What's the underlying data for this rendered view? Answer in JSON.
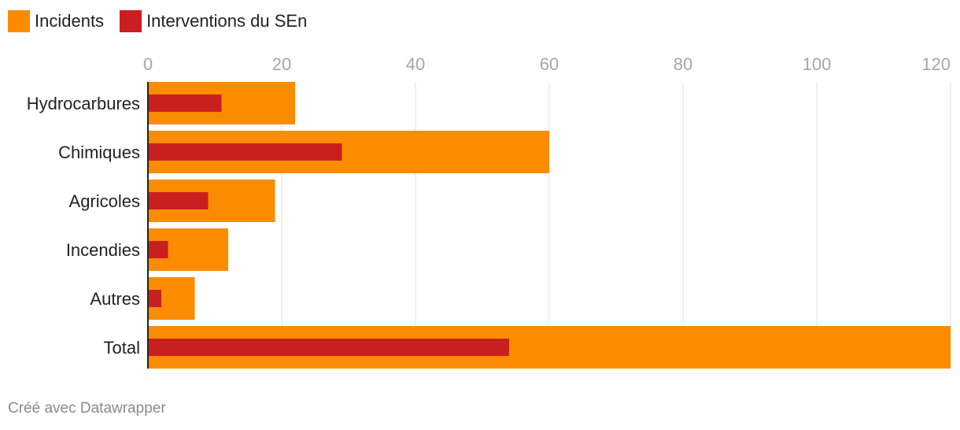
{
  "legend": {
    "incidents_label": "Incidents",
    "interventions_label": "Interventions du SEn"
  },
  "colors": {
    "incidents": "#FB8C00",
    "interventions": "#C9201F",
    "grid": "#e1e1e1",
    "axis_text": "#a6a6a6"
  },
  "chart_data": {
    "type": "bar",
    "orientation": "horizontal",
    "categories": [
      "Hydrocarbures",
      "Chimiques",
      "Agricoles",
      "Incendies",
      "Autres",
      "Total"
    ],
    "series": [
      {
        "name": "Incidents",
        "values": [
          22,
          60,
          19,
          12,
          7,
          120
        ]
      },
      {
        "name": "Interventions du SEn",
        "values": [
          11,
          29,
          9,
          3,
          2,
          54
        ]
      }
    ],
    "xlim": [
      0,
      120
    ],
    "xticks": [
      0,
      20,
      40,
      60,
      80,
      100,
      120
    ],
    "grid": true,
    "legend_position": "top-left"
  },
  "footer": {
    "credit": "Créé avec Datawrapper"
  }
}
